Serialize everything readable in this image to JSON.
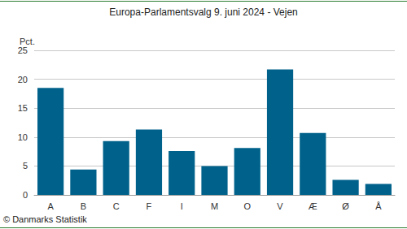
{
  "chart_data": {
    "type": "bar",
    "title": "Europa-Parlamentsvalg 9. juni 2024 - Vejen",
    "y_label": "Pct.",
    "annotation": "© Danmarks Statistik",
    "categories": [
      "A",
      "B",
      "C",
      "F",
      "I",
      "M",
      "O",
      "V",
      "Æ",
      "Ø",
      "Å"
    ],
    "values": [
      18.5,
      4.4,
      9.3,
      11.3,
      7.6,
      5.0,
      8.1,
      21.7,
      10.7,
      2.6,
      1.9
    ],
    "color": "#00628b",
    "ylim": [
      0,
      25
    ],
    "yticks": [
      0,
      5,
      10,
      15,
      20,
      25
    ],
    "grid": true
  }
}
